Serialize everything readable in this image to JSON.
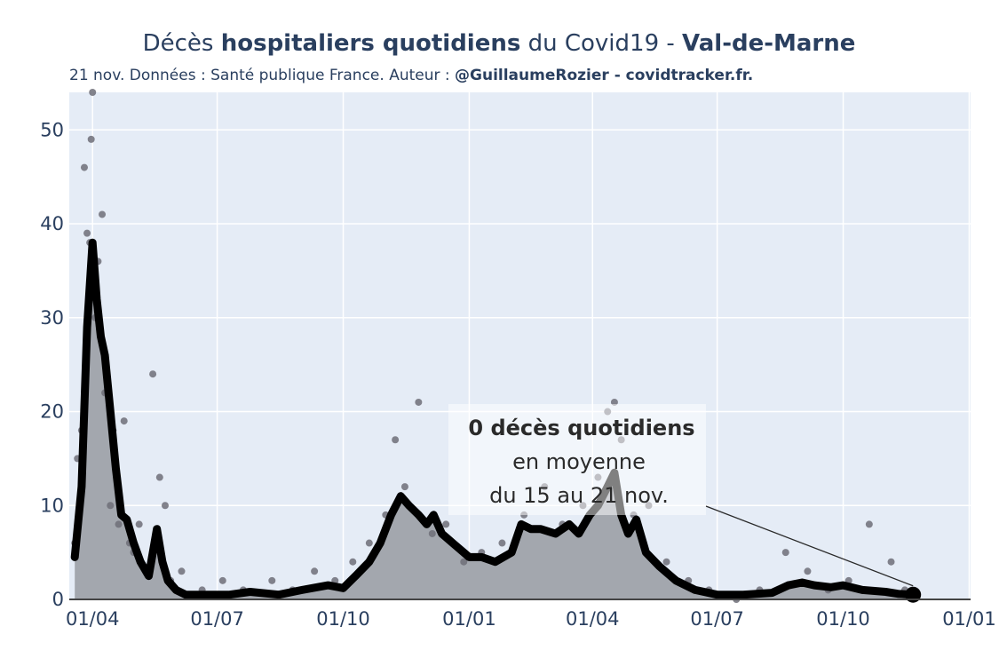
{
  "title": {
    "part1": "Décès ",
    "part2": "hospitaliers quotidiens",
    "part3": " du Covid19 - ",
    "part4": "Val-de-Marne"
  },
  "subtitle": {
    "part1": "21 nov. Données : Santé publique France. Auteur : ",
    "part2": "@GuillaumeRozier - covidtracker.fr."
  },
  "annotation": {
    "line1": "0 décès quotidiens",
    "line2": "en moyenne",
    "line3": "du 15 au 21 nov."
  },
  "colors": {
    "plot_background": "#e5ecf6",
    "grid": "#ffffff",
    "area_fill": "#a3a7ae",
    "avg_line": "#000000",
    "daily_points": "#6f6f78",
    "text": "#2a3f5f"
  },
  "chart_data": {
    "type": "area",
    "title": "Décès hospitaliers quotidiens du Covid19 - Val-de-Marne",
    "x_tick_labels": [
      "01/04",
      "01/07",
      "01/10",
      "01/01",
      "01/04",
      "01/07",
      "01/10",
      "01/01"
    ],
    "x_ticks": [
      "2020-04-01",
      "2020-07-01",
      "2020-10-01",
      "2021-01-01",
      "2021-04-01",
      "2021-07-01",
      "2021-10-01",
      "2022-01-01"
    ],
    "xlim": [
      "2020-03-15",
      "2022-01-02"
    ],
    "y_ticks": [
      0,
      10,
      20,
      30,
      40,
      50
    ],
    "ylim": [
      0,
      54
    ],
    "grid": true,
    "series": [
      {
        "style": "line + filled area",
        "x": [
          "2020-03-19",
          "2020-03-24",
          "2020-03-28",
          "2020-04-01",
          "2020-04-04",
          "2020-04-07",
          "2020-04-10",
          "2020-04-14",
          "2020-04-18",
          "2020-04-22",
          "2020-04-26",
          "2020-05-01",
          "2020-05-06",
          "2020-05-12",
          "2020-05-18",
          "2020-05-22",
          "2020-05-26",
          "2020-06-01",
          "2020-06-08",
          "2020-06-15",
          "2020-06-25",
          "2020-07-10",
          "2020-07-25",
          "2020-08-15",
          "2020-09-01",
          "2020-09-20",
          "2020-10-01",
          "2020-10-10",
          "2020-10-20",
          "2020-10-28",
          "2020-11-05",
          "2020-11-12",
          "2020-11-18",
          "2020-11-25",
          "2020-12-01",
          "2020-12-06",
          "2020-12-12",
          "2020-12-20",
          "2021-01-01",
          "2021-01-10",
          "2021-01-20",
          "2021-02-01",
          "2021-02-08",
          "2021-02-15",
          "2021-02-22",
          "2021-03-05",
          "2021-03-15",
          "2021-03-22",
          "2021-03-30",
          "2021-04-05",
          "2021-04-12",
          "2021-04-17",
          "2021-04-22",
          "2021-04-27",
          "2021-05-03",
          "2021-05-10",
          "2021-05-20",
          "2021-06-01",
          "2021-06-15",
          "2021-07-01",
          "2021-07-20",
          "2021-08-10",
          "2021-08-22",
          "2021-09-01",
          "2021-09-10",
          "2021-09-22",
          "2021-10-01",
          "2021-10-15",
          "2021-11-01",
          "2021-11-10",
          "2021-11-21"
        ],
        "values": [
          4.5,
          12,
          29,
          38,
          32,
          28,
          26,
          20,
          14,
          9,
          8.5,
          6,
          4,
          2.5,
          7.5,
          4,
          2,
          1,
          0.5,
          0.5,
          0.5,
          0.5,
          0.8,
          0.5,
          1,
          1.5,
          1.2,
          2.5,
          4,
          6,
          9,
          11,
          10,
          9,
          8,
          9,
          7,
          6,
          4.5,
          4.5,
          4,
          5,
          8,
          7.5,
          7.5,
          7,
          8,
          7,
          9,
          10,
          12,
          13.5,
          9,
          7,
          8.5,
          5,
          3.5,
          2,
          1,
          0.5,
          0.5,
          0.7,
          1.5,
          1.8,
          1.5,
          1.3,
          1.5,
          1,
          0.8,
          0.6,
          0.5
        ]
      },
      {
        "style": "daily points (gray markers)",
        "x": [
          "2020-03-19",
          "2020-03-21",
          "2020-03-24",
          "2020-03-26",
          "2020-03-28",
          "2020-03-30",
          "2020-03-31",
          "2020-04-01",
          "2020-04-02",
          "2020-04-03",
          "2020-04-05",
          "2020-04-07",
          "2020-04-08",
          "2020-04-10",
          "2020-04-12",
          "2020-04-14",
          "2020-04-16",
          "2020-04-20",
          "2020-04-24",
          "2020-04-28",
          "2020-05-01",
          "2020-05-05",
          "2020-05-10",
          "2020-05-15",
          "2020-05-20",
          "2020-05-24",
          "2020-05-28",
          "2020-06-05",
          "2020-06-20",
          "2020-07-05",
          "2020-07-20",
          "2020-08-10",
          "2020-08-25",
          "2020-09-10",
          "2020-09-25",
          "2020-10-08",
          "2020-10-20",
          "2020-11-01",
          "2020-11-08",
          "2020-11-15",
          "2020-11-25",
          "2020-12-05",
          "2020-12-15",
          "2020-12-28",
          "2021-01-10",
          "2021-01-25",
          "2021-02-10",
          "2021-02-25",
          "2021-03-10",
          "2021-03-25",
          "2021-04-05",
          "2021-04-12",
          "2021-04-17",
          "2021-04-22",
          "2021-05-01",
          "2021-05-12",
          "2021-05-25",
          "2021-06-10",
          "2021-06-25",
          "2021-07-15",
          "2021-08-01",
          "2021-08-20",
          "2021-09-05",
          "2021-09-20",
          "2021-10-05",
          "2021-10-20",
          "2021-11-05",
          "2021-11-15"
        ],
        "values": [
          6,
          15,
          18,
          46,
          39,
          38,
          49,
          54,
          35,
          30,
          36,
          28,
          41,
          22,
          22,
          10,
          18,
          8,
          19,
          6,
          5,
          8,
          3,
          24,
          13,
          10,
          2,
          3,
          1,
          2,
          1,
          2,
          1,
          3,
          2,
          4,
          6,
          9,
          17,
          12,
          21,
          7,
          8,
          4,
          5,
          6,
          9,
          12,
          8,
          10,
          13,
          20,
          21,
          17,
          9,
          10,
          4,
          2,
          1,
          0,
          1,
          5,
          3,
          1,
          2,
          8,
          4,
          1
        ]
      }
    ]
  }
}
